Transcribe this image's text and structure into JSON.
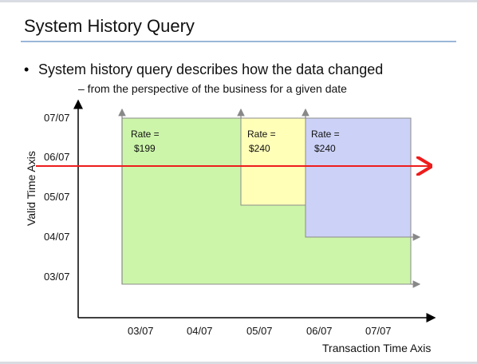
{
  "slide": {
    "title": "System History Query",
    "bullet": "System history query describes how the data changed",
    "sub_bullet": "– from the perspective of the business for a given date"
  },
  "diagram": {
    "y_axis_label": "Valid Time Axis",
    "x_axis_label": "Transaction Time Axis",
    "y_ticks": [
      "07/07",
      "06/07",
      "05/07",
      "04/07",
      "03/07"
    ],
    "x_ticks": [
      "03/07",
      "04/07",
      "05/07",
      "06/07",
      "07/07"
    ],
    "boxes": [
      {
        "line1": "Rate =",
        "line2": "$199",
        "fill": "#ccf5a9"
      },
      {
        "line1": "Rate =",
        "line2": "$240",
        "fill": "#ffffb8"
      },
      {
        "line1": "Rate =",
        "line2": "$240",
        "fill": "#ccd1f7"
      }
    ],
    "query_line_color": "#ee1c1c"
  }
}
